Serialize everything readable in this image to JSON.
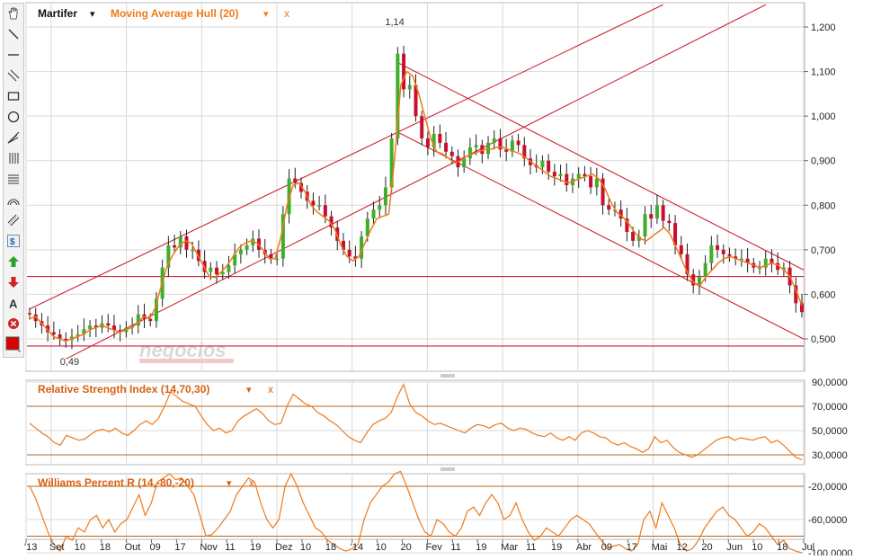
{
  "header": {
    "symbol": "Martifer",
    "indicator": "Moving Average Hull (20)",
    "dropdown_glyph": "▾",
    "close_glyph": "x"
  },
  "watermark": "negocios",
  "colors": {
    "up": "#3fae2b",
    "down": "#c8102e",
    "indicator_line": "#ee7a1b",
    "channel": "#cc2233",
    "panel_title": "#d86010",
    "grid": "#d9d9d9"
  },
  "toolbar": {
    "icons": [
      "hand-icon",
      "line-icon",
      "horizontal-line-icon",
      "parallel-lines-icon",
      "rectangle-icon",
      "ellipse-icon",
      "pitchfork-icon",
      "fibonacci-icon",
      "fibonacci-fan-icon",
      "arc-icon",
      "channel-icon",
      "dollar-icon",
      "arrow-up-icon",
      "arrow-down-icon",
      "text-icon",
      "delete-icon",
      "color-picker-icon"
    ]
  },
  "chart_data": [
    {
      "type": "line",
      "title": "Martifer",
      "y_axis": {
        "ticks": [
          "1,200",
          "1,100",
          "1,000",
          "0,900",
          "0,800",
          "0,700",
          "0,600",
          "0,500"
        ],
        "range": [
          0.45,
          1.24
        ]
      },
      "x_axis": {
        "labels": [
          "'13",
          "Set",
          "10",
          "18",
          "Out",
          "09",
          "17",
          "Nov",
          "11",
          "19",
          "Dez",
          "10",
          "18",
          "'14",
          "10",
          "20",
          "Fev",
          "11",
          "19",
          "Mar",
          "11",
          "19",
          "Abr",
          "09",
          "17",
          "Mai",
          "12",
          "20",
          "Jun",
          "10",
          "18",
          "Jul"
        ]
      },
      "annotations": [
        {
          "text": "1,14",
          "x": 61,
          "y": 1.2
        },
        {
          "text": "0,49",
          "x": 8,
          "y": 0.49
        }
      ],
      "horizontal_lines": [
        0.64,
        0.484
      ],
      "channel_lines": [
        {
          "from": [
            0,
            0.567
          ],
          "to": [
            105,
            1.25
          ]
        },
        {
          "from": [
            6,
            0.455
          ],
          "to": [
            122,
            1.25
          ]
        },
        {
          "from": [
            61,
            1.12
          ],
          "to": [
            130,
            0.643
          ]
        },
        {
          "from": [
            61,
            0.964
          ],
          "to": [
            130,
            0.488
          ]
        }
      ],
      "indicator": {
        "name": "Moving Average Hull (20)",
        "values": [
          0.545,
          0.55,
          0.535,
          0.52,
          0.505,
          0.5,
          0.495,
          0.5,
          0.505,
          0.51,
          0.52,
          0.525,
          0.53,
          0.525,
          0.52,
          0.515,
          0.52,
          0.525,
          0.535,
          0.55,
          0.545,
          0.57,
          0.62,
          0.665,
          0.69,
          0.71,
          0.72,
          0.715,
          0.69,
          0.665,
          0.64,
          0.638,
          0.65,
          0.665,
          0.685,
          0.705,
          0.715,
          0.72,
          0.715,
          0.7,
          0.68,
          0.68,
          0.73,
          0.8,
          0.845,
          0.85,
          0.83,
          0.8,
          0.785,
          0.775,
          0.765,
          0.745,
          0.71,
          0.685,
          0.675,
          0.685,
          0.715,
          0.745,
          0.77,
          0.775,
          0.78,
          0.91,
          1.07,
          1.1,
          1.09,
          1.05,
          1.0,
          0.95,
          0.92,
          0.915,
          0.905,
          0.895,
          0.9,
          0.91,
          0.915,
          0.92,
          0.925,
          0.925,
          0.93,
          0.93,
          0.925,
          0.92,
          0.915,
          0.905,
          0.895,
          0.885,
          0.875,
          0.865,
          0.86,
          0.855,
          0.85,
          0.855,
          0.86,
          0.865,
          0.87,
          0.86,
          0.84,
          0.81,
          0.785,
          0.775,
          0.76,
          0.74,
          0.725,
          0.72,
          0.73,
          0.74,
          0.75,
          0.735,
          0.705,
          0.675,
          0.645,
          0.625,
          0.62,
          0.64,
          0.655,
          0.67,
          0.68,
          0.685,
          0.68,
          0.675,
          0.67,
          0.665,
          0.66,
          0.665,
          0.67,
          0.665,
          0.655,
          0.64,
          0.61,
          0.575
        ]
      },
      "ohlc": {
        "open": [
          0.558,
          0.555,
          0.54,
          0.53,
          0.515,
          0.51,
          0.5,
          0.498,
          0.505,
          0.51,
          0.522,
          0.53,
          0.525,
          0.535,
          0.53,
          0.52,
          0.515,
          0.525,
          0.53,
          0.555,
          0.545,
          0.54,
          0.59,
          0.66,
          0.71,
          0.705,
          0.73,
          0.7,
          0.7,
          0.675,
          0.65,
          0.66,
          0.645,
          0.65,
          0.665,
          0.69,
          0.7,
          0.71,
          0.725,
          0.7,
          0.69,
          0.68,
          0.68,
          0.78,
          0.86,
          0.85,
          0.83,
          0.81,
          0.8,
          0.8,
          0.775,
          0.75,
          0.72,
          0.7,
          0.685,
          0.68,
          0.73,
          0.77,
          0.79,
          0.8,
          0.84,
          0.95,
          1.14,
          1.06,
          1.07,
          1.0,
          0.95,
          0.93,
          0.96,
          0.94,
          0.92,
          0.91,
          0.885,
          0.905,
          0.93,
          0.935,
          0.915,
          0.94,
          0.95,
          0.925,
          0.92,
          0.945,
          0.935,
          0.905,
          0.89,
          0.885,
          0.9,
          0.875,
          0.865,
          0.87,
          0.845,
          0.86,
          0.87,
          0.865,
          0.84,
          0.86,
          0.8,
          0.79,
          0.79,
          0.77,
          0.74,
          0.72,
          0.73,
          0.78,
          0.77,
          0.8,
          0.765,
          0.76,
          0.71,
          0.69,
          0.645,
          0.62,
          0.64,
          0.67,
          0.71,
          0.7,
          0.69,
          0.685,
          0.68,
          0.68,
          0.67,
          0.66,
          0.66,
          0.68,
          0.67,
          0.655,
          0.66,
          0.62,
          0.58
        ],
        "close": [
          0.555,
          0.54,
          0.53,
          0.515,
          0.51,
          0.5,
          0.498,
          0.505,
          0.51,
          0.522,
          0.53,
          0.525,
          0.535,
          0.53,
          0.52,
          0.515,
          0.525,
          0.53,
          0.555,
          0.545,
          0.54,
          0.59,
          0.66,
          0.71,
          0.705,
          0.73,
          0.7,
          0.7,
          0.675,
          0.65,
          0.66,
          0.645,
          0.65,
          0.665,
          0.69,
          0.7,
          0.71,
          0.725,
          0.7,
          0.69,
          0.68,
          0.68,
          0.78,
          0.86,
          0.85,
          0.83,
          0.81,
          0.8,
          0.8,
          0.775,
          0.75,
          0.72,
          0.7,
          0.685,
          0.68,
          0.73,
          0.77,
          0.79,
          0.8,
          0.84,
          0.95,
          1.14,
          1.06,
          1.07,
          1.0,
          0.95,
          0.93,
          0.96,
          0.94,
          0.92,
          0.91,
          0.885,
          0.905,
          0.93,
          0.935,
          0.915,
          0.94,
          0.95,
          0.925,
          0.92,
          0.945,
          0.935,
          0.905,
          0.89,
          0.885,
          0.9,
          0.875,
          0.865,
          0.87,
          0.845,
          0.86,
          0.87,
          0.865,
          0.84,
          0.86,
          0.8,
          0.79,
          0.79,
          0.77,
          0.74,
          0.72,
          0.73,
          0.78,
          0.77,
          0.8,
          0.765,
          0.76,
          0.71,
          0.69,
          0.645,
          0.62,
          0.64,
          0.67,
          0.71,
          0.7,
          0.69,
          0.685,
          0.68,
          0.68,
          0.67,
          0.66,
          0.66,
          0.68,
          0.67,
          0.655,
          0.66,
          0.62,
          0.58,
          0.56
        ]
      }
    },
    {
      "type": "line",
      "title": "Relative Strength Index (14,70,30)",
      "y_axis": {
        "ticks": [
          "90,0000",
          "70,0000",
          "50,0000",
          "30,0000"
        ],
        "range": [
          22,
          90
        ]
      },
      "reference_lines": [
        70,
        30
      ],
      "values": [
        56,
        52,
        48,
        45,
        40,
        38,
        46,
        44,
        42,
        43,
        47,
        50,
        51,
        49,
        52,
        48,
        46,
        50,
        55,
        58,
        55,
        60,
        70,
        82,
        78,
        74,
        72,
        70,
        62,
        55,
        50,
        52,
        48,
        50,
        58,
        62,
        65,
        68,
        64,
        58,
        55,
        56,
        70,
        80,
        76,
        72,
        70,
        65,
        62,
        58,
        55,
        50,
        45,
        42,
        40,
        48,
        55,
        58,
        60,
        65,
        78,
        88,
        72,
        65,
        62,
        58,
        55,
        56,
        54,
        52,
        50,
        48,
        52,
        55,
        54,
        52,
        55,
        56,
        52,
        50,
        52,
        51,
        48,
        46,
        45,
        48,
        44,
        42,
        45,
        42,
        48,
        50,
        48,
        45,
        44,
        40,
        38,
        40,
        37,
        35,
        32,
        35,
        45,
        40,
        42,
        36,
        32,
        30,
        28,
        30,
        34,
        38,
        42,
        44,
        45,
        42,
        44,
        43,
        42,
        44,
        45,
        40,
        42,
        38,
        33,
        28,
        26
      ]
    },
    {
      "type": "line",
      "title": "Williams Percent R (14,-80,-20)",
      "y_axis": {
        "ticks": [
          "-20,0000",
          "-60,0000",
          "-100,0000"
        ],
        "range": [
          -105,
          0
        ]
      },
      "reference_lines": [
        -20,
        -80
      ],
      "values": [
        -20,
        -35,
        -55,
        -75,
        -90,
        -98,
        -80,
        -85,
        -70,
        -75,
        -60,
        -55,
        -70,
        -60,
        -75,
        -65,
        -60,
        -45,
        -30,
        -55,
        -40,
        -15,
        -10,
        -5,
        -12,
        -10,
        -20,
        -30,
        -55,
        -80,
        -78,
        -70,
        -60,
        -50,
        -30,
        -20,
        -10,
        -15,
        -40,
        -60,
        -70,
        -60,
        -20,
        -5,
        -20,
        -40,
        -55,
        -70,
        -75,
        -85,
        -90,
        -95,
        -98,
        -95,
        -90,
        -60,
        -40,
        -30,
        -20,
        -15,
        -5,
        -2,
        -20,
        -40,
        -60,
        -75,
        -80,
        -60,
        -65,
        -75,
        -80,
        -70,
        -50,
        -45,
        -55,
        -40,
        -30,
        -40,
        -60,
        -55,
        -40,
        -60,
        -75,
        -85,
        -80,
        -70,
        -75,
        -80,
        -70,
        -60,
        -55,
        -60,
        -65,
        -75,
        -85,
        -95,
        -92,
        -90,
        -95,
        -98,
        -90,
        -60,
        -50,
        -70,
        -40,
        -55,
        -70,
        -90,
        -98,
        -95,
        -85,
        -70,
        -60,
        -50,
        -45,
        -55,
        -60,
        -70,
        -80,
        -75,
        -65,
        -70,
        -80,
        -90,
        -85,
        -95,
        -98,
        -100
      ]
    }
  ]
}
